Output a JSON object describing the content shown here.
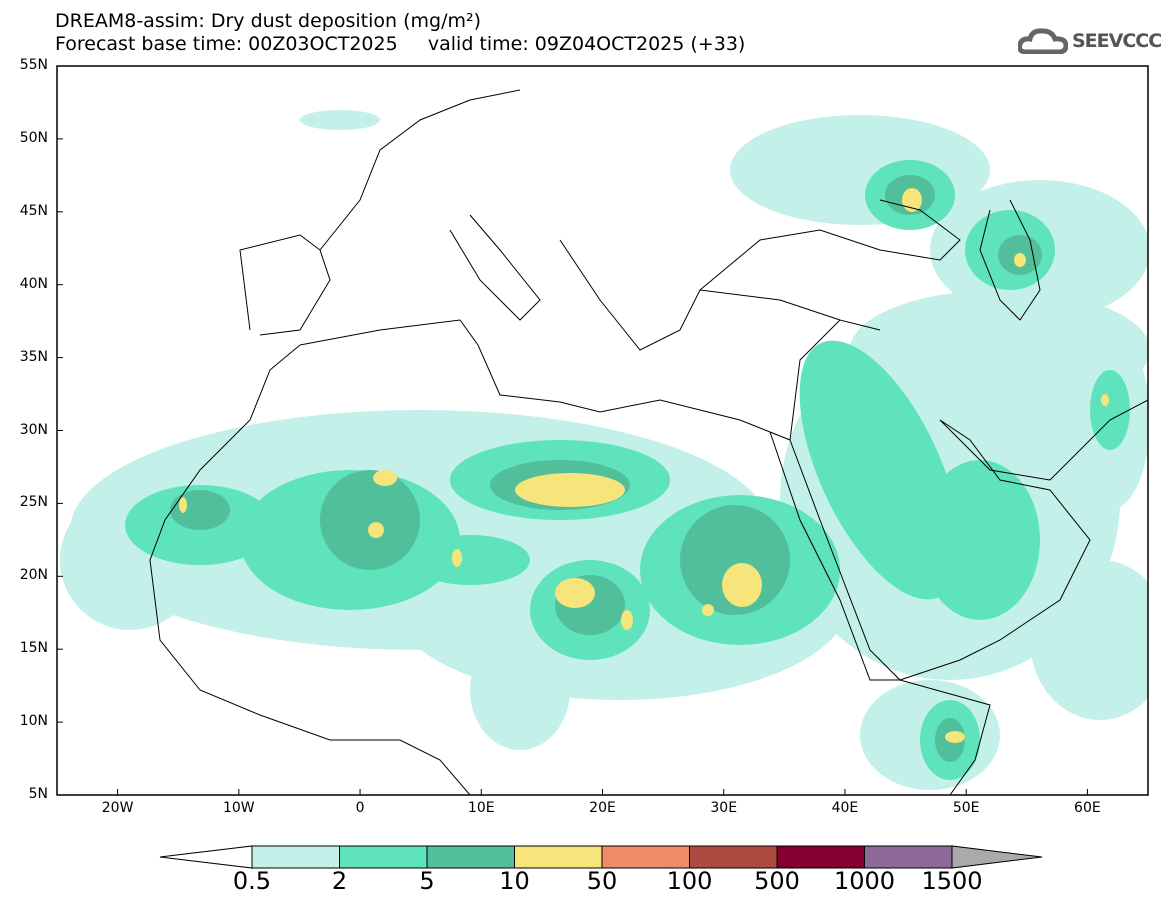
{
  "title": {
    "line1": "DREAM8-assim: Dry dust deposition (mg/m²)",
    "base_time_label": "Forecast base time: 00Z03OCT2025",
    "valid_time_label": "valid time: 09Z04OCT2025 (+33)"
  },
  "logo": {
    "text": "SEEVCCC"
  },
  "axes": {
    "lat_labels": [
      "5N",
      "10N",
      "15N",
      "20N",
      "25N",
      "30N",
      "35N",
      "40N",
      "45N",
      "50N",
      "55N"
    ],
    "lat_values": [
      5,
      10,
      15,
      20,
      25,
      30,
      35,
      40,
      45,
      50,
      55
    ],
    "lon_labels": [
      "20W",
      "10W",
      "0",
      "10E",
      "20E",
      "30E",
      "40E",
      "50E",
      "60E"
    ],
    "lon_values": [
      -20,
      -10,
      0,
      10,
      20,
      30,
      40,
      50,
      60
    ],
    "lon_range": [
      -25,
      65
    ],
    "lat_range": [
      5,
      55
    ]
  },
  "colorbar": {
    "labels": [
      "0.5",
      "2",
      "5",
      "10",
      "50",
      "100",
      "500",
      "1000",
      "1500"
    ],
    "colors": [
      "#c3f0e9",
      "#5fe3bd",
      "#52bf9b",
      "#f5e57a",
      "#ee8b69",
      "#ae4b41",
      "#830030",
      "#8e6a9b"
    ],
    "under_color": "#ffffff",
    "over_color": "#aaaaaa"
  }
}
